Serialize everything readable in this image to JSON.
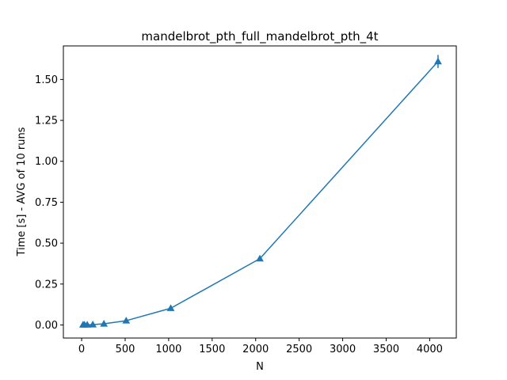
{
  "chart_data": {
    "type": "line",
    "title": "mandelbrot_pth_full_mandelbrot_pth_4t",
    "xlabel": "N",
    "ylabel": "Time [s] - AVG of 10 runs",
    "xlim": [
      -210,
      4306
    ],
    "ylim": [
      -0.08,
      1.705
    ],
    "xticks": [
      0,
      500,
      1000,
      1500,
      2000,
      2500,
      3000,
      3500,
      4000
    ],
    "yticks": [
      0.0,
      0.25,
      0.5,
      0.75,
      1.0,
      1.25,
      1.5
    ],
    "ytick_labels": [
      "0.00",
      "0.25",
      "0.50",
      "0.75",
      "1.00",
      "1.25",
      "1.50"
    ],
    "grid": false,
    "marker": "triangle-up",
    "series": [
      {
        "color": "#1f77b4",
        "x": [
          16,
          32,
          64,
          128,
          256,
          512,
          1024,
          2048,
          4096
        ],
        "y": [
          0.001,
          0.001,
          0.001,
          0.002,
          0.007,
          0.026,
          0.102,
          0.405,
          1.61
        ],
        "yerr": [
          0.0,
          0.0,
          0.0,
          0.0,
          0.001,
          0.002,
          0.005,
          0.01,
          0.04
        ]
      }
    ]
  }
}
